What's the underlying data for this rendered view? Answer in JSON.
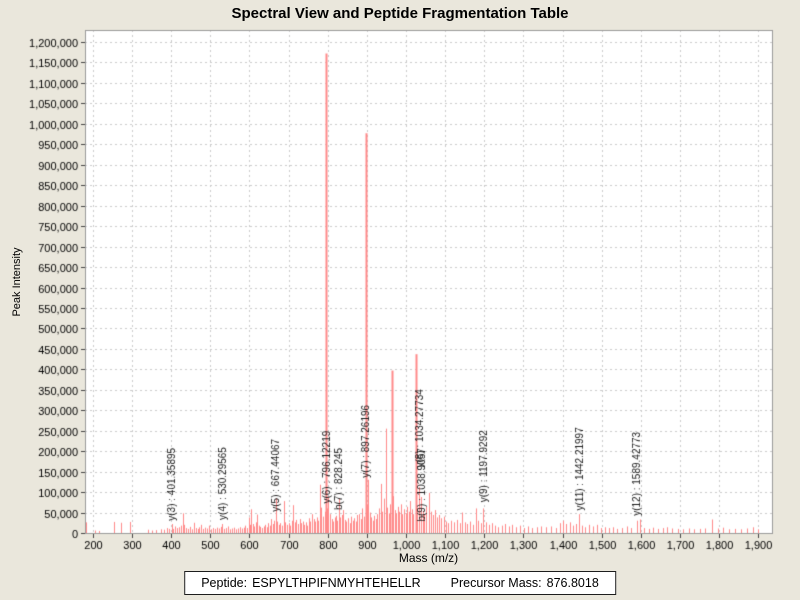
{
  "title": "Spectral View and Peptide Fragmentation Table",
  "footer": {
    "peptide_label": "Peptide:",
    "peptide": "ESPYLTHPIFNMYHTEHELLR",
    "precursor_label": "Precursor Mass:",
    "precursor_mass": "876.8018"
  },
  "colors": {
    "background": "#EAE7DC",
    "plot_background": "#FFFFFF",
    "grid": "#CCCCCC",
    "plot_border": "#9A9A9A",
    "peak": "#FF8A8A",
    "text": "#000000"
  },
  "chart_data": {
    "type": "bar",
    "title": "Spectral View and Peptide Fragmentation Table",
    "xlabel": "Mass (m/z)",
    "ylabel": "Peak Intensity",
    "xlim": [
      180,
      1935
    ],
    "ylim": [
      0,
      1200000
    ],
    "grid": true,
    "x_ticks": [
      200,
      300,
      400,
      500,
      600,
      700,
      800,
      900,
      1000,
      1100,
      1200,
      1300,
      1400,
      1500,
      1600,
      1700,
      1800,
      1900
    ],
    "y_ticks": [
      0,
      50000,
      100000,
      150000,
      200000,
      250000,
      300000,
      350000,
      400000,
      450000,
      500000,
      550000,
      600000,
      650000,
      700000,
      750000,
      800000,
      850000,
      900000,
      950000,
      1000000,
      1050000,
      1100000,
      1150000,
      1200000
    ],
    "y_tick_step": 50000,
    "bar_color": "#FF8A8A",
    "annotation_color": "#1A1A1A",
    "annotations": [
      {
        "text": "y(3) : 401.35895",
        "mz": 401.35895,
        "base_intensity": 30000
      },
      {
        "text": "y(4) : 530.29565",
        "mz": 530.29565,
        "base_intensity": 32000
      },
      {
        "text": "y(5) : 667.44067",
        "mz": 667.44067,
        "base_intensity": 52000
      },
      {
        "text": "y(6) : 796.12219",
        "mz": 796.12219,
        "base_intensity": 72000
      },
      {
        "text": "b(7) : 828.245",
        "mz": 828.245,
        "base_intensity": 56000
      },
      {
        "text": "y(7) : 897.26196",
        "mz": 897.26196,
        "base_intensity": 135000
      },
      {
        "text": "y(8) : 1034.27734",
        "mz": 1034.27734,
        "base_intensity": 160000
      },
      {
        "text": "b(9) : 1038.9057",
        "mz": 1038.9057,
        "base_intensity": 28000
      },
      {
        "text": "y(9) : 1197.9292",
        "mz": 1197.9292,
        "base_intensity": 75000
      },
      {
        "text": "y(11) : 1442.21997",
        "mz": 1442.21997,
        "base_intensity": 55000
      },
      {
        "text": "y(12) : 1589.42773",
        "mz": 1589.42773,
        "base_intensity": 42000
      }
    ],
    "peaks": [
      [
        183,
        26000
      ],
      [
        205,
        6000
      ],
      [
        215,
        5000
      ],
      [
        255,
        27000
      ],
      [
        273,
        25000
      ],
      [
        295,
        27000
      ],
      [
        340,
        8000
      ],
      [
        352,
        6000
      ],
      [
        362,
        7000
      ],
      [
        374,
        9000
      ],
      [
        383,
        8000
      ],
      [
        390,
        12000
      ],
      [
        395,
        10000
      ],
      [
        401,
        22000
      ],
      [
        406,
        10000
      ],
      [
        411,
        16000
      ],
      [
        416,
        12000
      ],
      [
        421,
        14000
      ],
      [
        426,
        18000
      ],
      [
        430,
        48000
      ],
      [
        434,
        20000
      ],
      [
        439,
        12000
      ],
      [
        444,
        10000
      ],
      [
        449,
        15000
      ],
      [
        454,
        9000
      ],
      [
        458,
        25000
      ],
      [
        463,
        12000
      ],
      [
        468,
        10000
      ],
      [
        472,
        14000
      ],
      [
        477,
        20000
      ],
      [
        482,
        10000
      ],
      [
        487,
        13000
      ],
      [
        492,
        11000
      ],
      [
        498,
        18000
      ],
      [
        503,
        9000
      ],
      [
        508,
        12000
      ],
      [
        513,
        10000
      ],
      [
        518,
        13000
      ],
      [
        523,
        11000
      ],
      [
        527,
        15000
      ],
      [
        530,
        22000
      ],
      [
        535,
        10000
      ],
      [
        540,
        12000
      ],
      [
        545,
        16000
      ],
      [
        550,
        9000
      ],
      [
        555,
        11000
      ],
      [
        560,
        13000
      ],
      [
        565,
        9000
      ],
      [
        570,
        11000
      ],
      [
        575,
        14000
      ],
      [
        580,
        11000
      ],
      [
        585,
        13000
      ],
      [
        590,
        18000
      ],
      [
        594,
        12000
      ],
      [
        598,
        38000
      ],
      [
        602,
        20000
      ],
      [
        605,
        58000
      ],
      [
        609,
        22000
      ],
      [
        613,
        16000
      ],
      [
        617,
        26000
      ],
      [
        620,
        45000
      ],
      [
        624,
        18000
      ],
      [
        628,
        15000
      ],
      [
        632,
        12000
      ],
      [
        636,
        16000
      ],
      [
        640,
        20000
      ],
      [
        644,
        14000
      ],
      [
        648,
        24000
      ],
      [
        652,
        18000
      ],
      [
        656,
        34000
      ],
      [
        660,
        22000
      ],
      [
        664,
        30000
      ],
      [
        667,
        85000
      ],
      [
        671,
        28000
      ],
      [
        675,
        20000
      ],
      [
        679,
        24000
      ],
      [
        683,
        18000
      ],
      [
        688,
        78000
      ],
      [
        692,
        26000
      ],
      [
        696,
        20000
      ],
      [
        700,
        24000
      ],
      [
        704,
        18000
      ],
      [
        708,
        30000
      ],
      [
        712,
        68000
      ],
      [
        716,
        26000
      ],
      [
        720,
        32000
      ],
      [
        724,
        22000
      ],
      [
        728,
        34000
      ],
      [
        732,
        24000
      ],
      [
        736,
        28000
      ],
      [
        740,
        20000
      ],
      [
        744,
        26000
      ],
      [
        748,
        18000
      ],
      [
        752,
        36000
      ],
      [
        756,
        28000
      ],
      [
        760,
        46000
      ],
      [
        764,
        34000
      ],
      [
        768,
        28000
      ],
      [
        772,
        38000
      ],
      [
        776,
        30000
      ],
      [
        780,
        118000
      ],
      [
        784,
        62000
      ],
      [
        788,
        40000
      ],
      [
        792,
        52000
      ],
      [
        796,
        1172000
      ],
      [
        799,
        60000
      ],
      [
        802,
        88000
      ],
      [
        806,
        46000
      ],
      [
        810,
        34000
      ],
      [
        814,
        28000
      ],
      [
        818,
        38000
      ],
      [
        822,
        42000
      ],
      [
        825,
        30000
      ],
      [
        828,
        84000
      ],
      [
        832,
        38000
      ],
      [
        836,
        44000
      ],
      [
        840,
        56000
      ],
      [
        844,
        32000
      ],
      [
        848,
        28000
      ],
      [
        852,
        36000
      ],
      [
        856,
        24000
      ],
      [
        860,
        40000
      ],
      [
        864,
        30000
      ],
      [
        868,
        36000
      ],
      [
        872,
        28000
      ],
      [
        876,
        44000
      ],
      [
        880,
        46000
      ],
      [
        884,
        34000
      ],
      [
        888,
        60000
      ],
      [
        892,
        40000
      ],
      [
        897,
        977000
      ],
      [
        900,
        70000
      ],
      [
        903,
        130000
      ],
      [
        907,
        50000
      ],
      [
        911,
        38000
      ],
      [
        915,
        30000
      ],
      [
        919,
        42000
      ],
      [
        923,
        34000
      ],
      [
        927,
        46000
      ],
      [
        931,
        60000
      ],
      [
        935,
        120000
      ],
      [
        939,
        52000
      ],
      [
        943,
        84000
      ],
      [
        948,
        255000
      ],
      [
        952,
        62000
      ],
      [
        956,
        48000
      ],
      [
        960,
        70000
      ],
      [
        963,
        397000
      ],
      [
        967,
        90000
      ],
      [
        971,
        56000
      ],
      [
        975,
        48000
      ],
      [
        979,
        64000
      ],
      [
        983,
        52000
      ],
      [
        987,
        70000
      ],
      [
        991,
        46000
      ],
      [
        995,
        58000
      ],
      [
        999,
        48000
      ],
      [
        1003,
        64000
      ],
      [
        1007,
        52000
      ],
      [
        1011,
        78000
      ],
      [
        1015,
        58000
      ],
      [
        1019,
        46000
      ],
      [
        1025,
        437000
      ],
      [
        1029,
        62000
      ],
      [
        1034,
        112000
      ],
      [
        1039,
        88000
      ],
      [
        1043,
        54000
      ],
      [
        1047,
        46000
      ],
      [
        1052,
        64000
      ],
      [
        1058,
        98000
      ],
      [
        1063,
        52000
      ],
      [
        1068,
        44000
      ],
      [
        1073,
        56000
      ],
      [
        1078,
        38000
      ],
      [
        1084,
        44000
      ],
      [
        1090,
        36000
      ],
      [
        1096,
        40000
      ],
      [
        1102,
        28000
      ],
      [
        1108,
        24000
      ],
      [
        1115,
        30000
      ],
      [
        1122,
        26000
      ],
      [
        1130,
        32000
      ],
      [
        1138,
        24000
      ],
      [
        1144,
        50000
      ],
      [
        1150,
        26000
      ],
      [
        1157,
        22000
      ],
      [
        1164,
        28000
      ],
      [
        1171,
        20000
      ],
      [
        1178,
        60000
      ],
      [
        1185,
        30000
      ],
      [
        1192,
        24000
      ],
      [
        1198,
        60000
      ],
      [
        1205,
        26000
      ],
      [
        1212,
        20000
      ],
      [
        1220,
        24000
      ],
      [
        1228,
        18000
      ],
      [
        1236,
        14000
      ],
      [
        1245,
        18000
      ],
      [
        1254,
        22000
      ],
      [
        1263,
        16000
      ],
      [
        1272,
        20000
      ],
      [
        1282,
        14000
      ],
      [
        1292,
        18000
      ],
      [
        1302,
        12000
      ],
      [
        1312,
        16000
      ],
      [
        1322,
        12000
      ],
      [
        1334,
        14000
      ],
      [
        1346,
        16000
      ],
      [
        1358,
        14000
      ],
      [
        1370,
        16000
      ],
      [
        1382,
        12000
      ],
      [
        1394,
        24000
      ],
      [
        1402,
        30000
      ],
      [
        1410,
        22000
      ],
      [
        1418,
        26000
      ],
      [
        1426,
        18000
      ],
      [
        1434,
        22000
      ],
      [
        1442,
        46000
      ],
      [
        1450,
        18000
      ],
      [
        1458,
        14000
      ],
      [
        1468,
        20000
      ],
      [
        1478,
        16000
      ],
      [
        1488,
        20000
      ],
      [
        1498,
        12000
      ],
      [
        1508,
        14000
      ],
      [
        1518,
        12000
      ],
      [
        1528,
        14000
      ],
      [
        1540,
        10000
      ],
      [
        1552,
        12000
      ],
      [
        1564,
        16000
      ],
      [
        1576,
        12000
      ],
      [
        1589,
        30000
      ],
      [
        1598,
        33000
      ],
      [
        1608,
        12000
      ],
      [
        1620,
        10000
      ],
      [
        1632,
        13000
      ],
      [
        1644,
        10000
      ],
      [
        1656,
        12000
      ],
      [
        1668,
        14000
      ],
      [
        1680,
        11000
      ],
      [
        1694,
        10000
      ],
      [
        1708,
        9000
      ],
      [
        1722,
        11000
      ],
      [
        1736,
        9000
      ],
      [
        1750,
        10000
      ],
      [
        1764,
        11000
      ],
      [
        1782,
        33000
      ],
      [
        1796,
        11000
      ],
      [
        1810,
        13000
      ],
      [
        1824,
        9000
      ],
      [
        1840,
        10000
      ],
      [
        1856,
        9000
      ],
      [
        1872,
        11000
      ],
      [
        1886,
        14000
      ],
      [
        1900,
        9000
      ]
    ]
  }
}
